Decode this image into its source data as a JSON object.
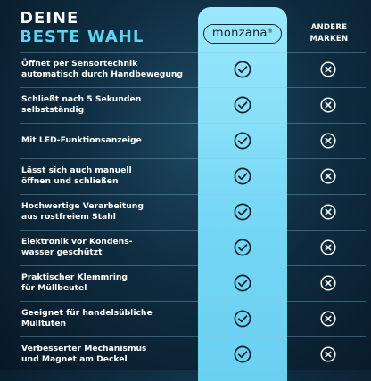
{
  "title": {
    "line1": "DEINE",
    "line2": "BESTE WAHL"
  },
  "brand": {
    "name": "monzana",
    "mark": "®"
  },
  "other_brands": {
    "line1": "ANDERE",
    "line2": "MARKEN"
  },
  "colors": {
    "accent": "#5fd3f0",
    "column": "#7ad8f4",
    "dark": "#0f2233"
  },
  "rows": [
    {
      "label": "Öffnet per Sensortechnik\nautomatisch durch Handbewegung",
      "monzana": "check-icon",
      "other": "cross-icon"
    },
    {
      "label": "Schließt nach 5 Sekunden\nselbstständig",
      "monzana": "check-icon",
      "other": "cross-icon"
    },
    {
      "label": "Mit LED-Funktionsanzeige",
      "monzana": "check-icon",
      "other": "cross-icon"
    },
    {
      "label": "Lässt sich auch manuell\nöffnen und schließen",
      "monzana": "check-icon",
      "other": "cross-icon"
    },
    {
      "label": "Hochwertige Verarbeitung\naus rostfreiem Stahl",
      "monzana": "check-icon",
      "other": "cross-icon"
    },
    {
      "label": "Elektronik vor Kondens-\nwasser geschützt",
      "monzana": "check-icon",
      "other": "cross-icon"
    },
    {
      "label": "Praktischer Klemmring\nfür Müllbeutel",
      "monzana": "check-icon",
      "other": "cross-icon"
    },
    {
      "label": "Geeignet für handelsübliche\nMülltüten",
      "monzana": "check-icon",
      "other": "cross-icon"
    },
    {
      "label": "Verbesserter Mechanismus\nund Magnet am Deckel",
      "monzana": "check-icon",
      "other": "cross-icon"
    }
  ]
}
